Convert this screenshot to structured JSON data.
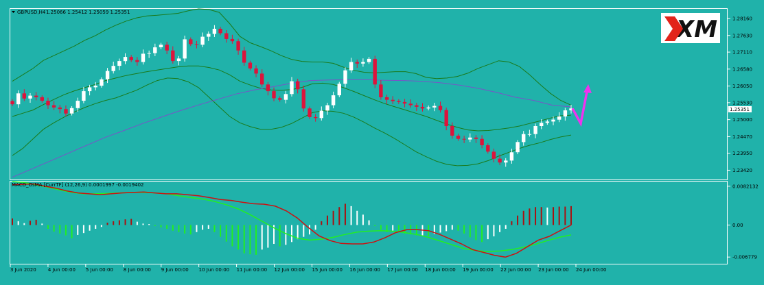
{
  "chart_data": [
    {
      "type": "candlestick",
      "symbol": "GBPUSD,H4",
      "header_ohlc": "1.25066 1.25412 1.25059 1.25351",
      "current_price": "1.25351",
      "y_ticks": [
        "1.28160",
        "1.27630",
        "1.27110",
        "1.26580",
        "1.26050",
        "1.25530",
        "1.25000",
        "1.24470",
        "1.23950",
        "1.23420"
      ],
      "y_range": [
        1.2313,
        1.2846
      ],
      "x_ticks": [
        "3 Jun 2020",
        "4 Jun 00:00",
        "5 Jun 00:00",
        "8 Jun 00:00",
        "9 Jun 00:00",
        "10 Jun 00:00",
        "11 Jun 00:00",
        "12 Jun 00:00",
        "15 Jun 00:00",
        "16 Jun 00:00",
        "17 Jun 00:00",
        "18 Jun 00:00",
        "19 Jun 00:00",
        "22 Jun 00:00",
        "23 Jun 00:00",
        "24 Jun 00:00"
      ],
      "closes": [
        1.2548,
        1.2582,
        1.2566,
        1.2575,
        1.257,
        1.2559,
        1.2545,
        1.2538,
        1.2533,
        1.2519,
        1.2536,
        1.2559,
        1.2589,
        1.2601,
        1.2606,
        1.2626,
        1.2652,
        1.2668,
        1.2683,
        1.2696,
        1.2686,
        1.268,
        1.2706,
        1.2708,
        1.2726,
        1.2734,
        1.2716,
        1.2683,
        1.2691,
        1.2751,
        1.2736,
        1.2734,
        1.2759,
        1.2768,
        1.2784,
        1.277,
        1.2752,
        1.2745,
        1.2716,
        1.2678,
        1.266,
        1.2644,
        1.261,
        1.2589,
        1.2567,
        1.2562,
        1.258,
        1.262,
        1.2595,
        1.2535,
        1.2508,
        1.2505,
        1.2528,
        1.2545,
        1.2576,
        1.2612,
        1.2654,
        1.268,
        1.2675,
        1.268,
        1.269,
        1.261,
        1.257,
        1.2562,
        1.2558,
        1.2555,
        1.255,
        1.2545,
        1.254,
        1.2535,
        1.2538,
        1.2543,
        1.253,
        1.248,
        1.245,
        1.244,
        1.2438,
        1.2444,
        1.244,
        1.242,
        1.24,
        1.2378,
        1.2366,
        1.2372,
        1.2398,
        1.243,
        1.2455,
        1.2455,
        1.248,
        1.249,
        1.2494,
        1.25,
        1.251,
        1.2529,
        1.2535
      ],
      "bollinger": {
        "upper": [
          1.262,
          1.264,
          1.266,
          1.2685,
          1.27,
          1.2715,
          1.273,
          1.2748,
          1.2762,
          1.278,
          1.2795,
          1.2808,
          1.2818,
          1.2824,
          1.2826,
          1.2829,
          1.2832,
          1.284,
          1.2846,
          1.2844,
          1.2835,
          1.28,
          1.276,
          1.274,
          1.2728,
          1.2715,
          1.27,
          1.2688,
          1.2682,
          1.268,
          1.268,
          1.2676,
          1.2664,
          1.2654,
          1.2648,
          1.2646,
          1.2648,
          1.265,
          1.265,
          1.2644,
          1.2632,
          1.2628,
          1.263,
          1.2635,
          1.2645,
          1.266,
          1.2672,
          1.2684,
          1.268,
          1.2666,
          1.264,
          1.261,
          1.2582,
          1.256,
          1.2545
        ],
        "lower": [
          1.2388,
          1.241,
          1.244,
          1.247,
          1.249,
          1.2508,
          1.2524,
          1.2538,
          1.255,
          1.256,
          1.2568,
          1.258,
          1.2592,
          1.2608,
          1.2622,
          1.263,
          1.2628,
          1.2618,
          1.26,
          1.257,
          1.254,
          1.251,
          1.249,
          1.2478,
          1.247,
          1.247,
          1.2476,
          1.2488,
          1.2505,
          1.2522,
          1.2528,
          1.2526,
          1.252,
          1.2508,
          1.2492,
          1.2474,
          1.2458,
          1.244,
          1.242,
          1.24,
          1.2384,
          1.237,
          1.236,
          1.2356,
          1.2357,
          1.2362,
          1.2372,
          1.2386,
          1.2398,
          1.241,
          1.242,
          1.2428,
          1.2438,
          1.2446,
          1.2452
        ],
        "middle": [
          1.251,
          1.252,
          1.253,
          1.2547,
          1.2563,
          1.2578,
          1.259,
          1.26,
          1.261,
          1.2622,
          1.263,
          1.2638,
          1.2644,
          1.265,
          1.2655,
          1.266,
          1.2665,
          1.2668,
          1.2668,
          1.2663,
          1.2655,
          1.264,
          1.262,
          1.2608,
          1.2598,
          1.2593,
          1.2592,
          1.2594,
          1.2601,
          1.2612,
          1.2614,
          1.261,
          1.26,
          1.2588,
          1.2575,
          1.2562,
          1.255,
          1.254,
          1.253,
          1.252,
          1.251,
          1.2498,
          1.2486,
          1.2476,
          1.2468,
          1.2465,
          1.2466,
          1.247,
          1.2474,
          1.248,
          1.2488,
          1.2496,
          1.2505,
          1.2512,
          1.2514
        ]
      },
      "ma_line": [
        1.232,
        1.2345,
        1.237,
        1.2395,
        1.242,
        1.2445,
        1.2466,
        1.2488,
        1.2508,
        1.2528,
        1.2546,
        1.2563,
        1.258,
        1.2593,
        1.2603,
        1.2614,
        1.2622,
        1.2624,
        1.2625,
        1.2625,
        1.2623,
        1.2622,
        1.262,
        1.2615,
        1.2608,
        1.2598,
        1.2585,
        1.257,
        1.256,
        1.2545,
        1.254
      ],
      "forecast_arrow": {
        "color": "#ee33ee",
        "path": [
          1.2535,
          1.2488,
          1.2598
        ]
      }
    },
    {
      "type": "macd",
      "title": "MACD_OsMA [CurrTF] (12,26,9) 0.0001997 -0.0019402",
      "y_ticks": [
        "0.0082132",
        "0.00",
        "-0.006779"
      ],
      "y_range": [
        -0.0082,
        0.0092
      ],
      "histogram": [
        0.0014,
        0.0008,
        0.0004,
        0.0009,
        0.0011,
        0.0003,
        -0.0008,
        -0.0014,
        -0.0018,
        -0.0022,
        -0.0028,
        -0.0021,
        -0.0017,
        -0.0012,
        -0.0008,
        -0.0004,
        0.0005,
        0.0008,
        0.001,
        0.0012,
        0.0013,
        0.0007,
        0.0003,
        0.0002,
        -0.0002,
        -0.0005,
        -0.0008,
        -0.0012,
        -0.0015,
        -0.0018,
        -0.002,
        -0.0015,
        -0.001,
        -0.0008,
        -0.0015,
        -0.0025,
        -0.0035,
        -0.0045,
        -0.0052,
        -0.006,
        -0.0062,
        -0.0063,
        -0.0052,
        -0.0048,
        -0.004,
        -0.0045,
        -0.0042,
        -0.0036,
        -0.003,
        -0.0025,
        -0.002,
        -0.001,
        0.0008,
        0.002,
        0.003,
        0.0038,
        0.0045,
        0.004,
        0.003,
        0.0022,
        0.001,
        -0.0002,
        -0.001,
        -0.0015,
        -0.0012,
        -0.0014,
        -0.0018,
        -0.002,
        -0.0022,
        -0.0022,
        -0.0023,
        -0.0019,
        -0.0016,
        -0.0013,
        -0.001,
        -0.0012,
        -0.0018,
        -0.0026,
        -0.0032,
        -0.0036,
        -0.003,
        -0.0024,
        -0.0015,
        -0.0008,
        0.0008,
        0.002,
        0.003,
        0.0035,
        0.0038,
        0.0038,
        0.0037,
        0.0038,
        0.0039,
        0.0039,
        0.004
      ],
      "main_line": [
        0.0085,
        0.0086,
        0.0087,
        0.0082,
        0.0078,
        0.0072,
        0.0068,
        0.0066,
        0.0064,
        0.0066,
        0.0068,
        0.0069,
        0.007,
        0.0068,
        0.0066,
        0.0066,
        0.0064,
        0.0062,
        0.0058,
        0.0054,
        0.0052,
        0.0048,
        0.0045,
        0.0044,
        0.004,
        0.003,
        0.0015,
        -0.0005,
        -0.0023,
        -0.0033,
        -0.0039,
        -0.004,
        -0.004,
        -0.0036,
        -0.0027,
        -0.0016,
        -0.001,
        -0.001,
        -0.0012,
        -0.002,
        -0.003,
        -0.004,
        -0.0052,
        -0.0058,
        -0.0064,
        -0.0068,
        -0.006,
        -0.0046,
        -0.0032,
        -0.0024,
        -0.0012,
        0.0
      ],
      "signal_line": [
        0.0092,
        0.009,
        0.0085,
        0.008,
        0.0074,
        0.0069,
        0.0066,
        0.0066,
        0.0067,
        0.0068,
        0.0069,
        0.0069,
        0.0068,
        0.0066,
        0.0062,
        0.0058,
        0.0055,
        0.005,
        0.0043,
        0.0034,
        0.0022,
        0.0008,
        -0.0006,
        -0.0018,
        -0.0028,
        -0.0032,
        -0.003,
        -0.0026,
        -0.002,
        -0.0015,
        -0.0013,
        -0.0012,
        -0.0013,
        -0.0016,
        -0.002,
        -0.0026,
        -0.0034,
        -0.0042,
        -0.005,
        -0.0054,
        -0.0056,
        -0.0055,
        -0.0052,
        -0.0047,
        -0.0041,
        -0.0033,
        -0.0026,
        -0.0021
      ]
    }
  ],
  "colors": {
    "background": "#20b2aa",
    "bull_candle": "#ffffff",
    "bear_candle": "#dc143c",
    "bollinger": "#1a7a1a",
    "ma_line": "#7755c8",
    "macd_main": "#cc1111",
    "macd_signal": "#22ee22",
    "hist_up": "#aa1111",
    "hist_down": "#ffffff",
    "hist_green": "#22ee22"
  },
  "logo": {
    "text": "XM"
  }
}
